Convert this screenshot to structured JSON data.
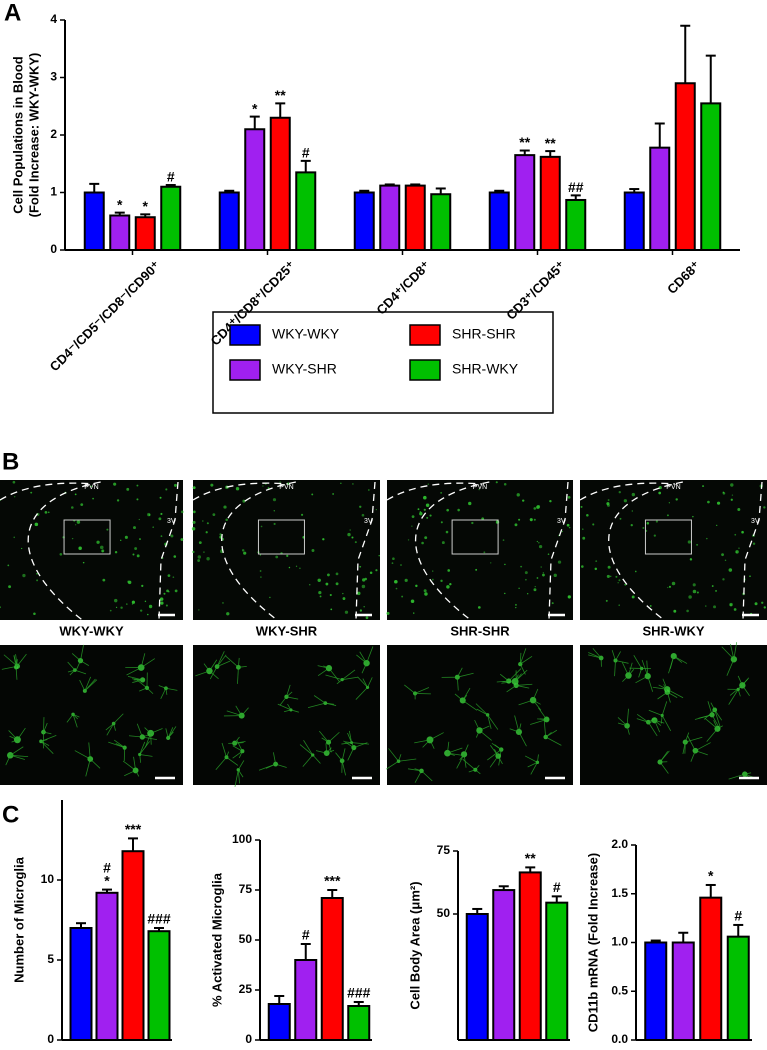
{
  "panel_labels": {
    "a": "A",
    "b": "B",
    "c": "C"
  },
  "chart_data": [
    {
      "type": "grouped-bar",
      "ylabel": [
        "Cell Populations in Blood",
        "(Fold Increase: WKY-WKY)"
      ],
      "categories": [
        "CD4⁻/CD5⁻/CD8⁻/CD90⁺",
        "CD4⁺/CD8⁺/CD25⁺",
        "CD4⁺/CD8⁺",
        "CD3⁺/CD45⁺",
        "CD68⁺"
      ],
      "ylim": [
        0,
        4
      ],
      "yticks": [
        0,
        1,
        2,
        3,
        4
      ],
      "series": [
        {
          "name": "WKY-WKY",
          "color": "#0000ff",
          "values": [
            1.0,
            1.0,
            1.0,
            1.0,
            1.0
          ],
          "errors": [
            0.15,
            0.03,
            0.03,
            0.03,
            0.06
          ],
          "annotations": [
            null,
            null,
            null,
            null,
            null
          ]
        },
        {
          "name": "WKY-SHR",
          "color": "#a020f0",
          "values": [
            0.6,
            2.1,
            1.12,
            1.65,
            1.78
          ],
          "errors": [
            0.05,
            0.22,
            0.02,
            0.08,
            0.42
          ],
          "annotations": [
            "*",
            "*",
            null,
            "**",
            null
          ]
        },
        {
          "name": "SHR-SHR",
          "color": "#ff0000",
          "values": [
            0.57,
            2.3,
            1.12,
            1.62,
            2.9
          ],
          "errors": [
            0.05,
            0.25,
            0.02,
            0.1,
            1.0
          ],
          "annotations": [
            "*",
            "**",
            null,
            "**",
            null
          ]
        },
        {
          "name": "SHR-WKY",
          "color": "#00c000",
          "values": [
            1.1,
            1.35,
            0.97,
            0.87,
            2.55
          ],
          "errors": [
            0.03,
            0.2,
            0.1,
            0.08,
            0.83
          ],
          "annotations": [
            "#",
            "#",
            null,
            "##",
            null
          ]
        }
      ]
    },
    {
      "type": "bar",
      "ylabel": "Number of Microglia",
      "ylim": [
        0,
        15
      ],
      "yticks": [
        0,
        5,
        10
      ],
      "colors": [
        "#0000ff",
        "#a020f0",
        "#ff0000",
        "#00c000"
      ],
      "values": [
        7.0,
        9.2,
        11.8,
        6.8
      ],
      "errors": [
        0.3,
        0.2,
        0.8,
        0.2
      ],
      "annotations": [
        [],
        [
          "#",
          "*"
        ],
        [
          "***"
        ],
        [
          "###"
        ]
      ]
    },
    {
      "type": "bar",
      "ylabel": "% Activated Microglia",
      "ylim": [
        0,
        100
      ],
      "yticks": [
        0,
        25,
        50,
        75,
        100
      ],
      "colors": [
        "#0000ff",
        "#a020f0",
        "#ff0000",
        "#00c000"
      ],
      "values": [
        18,
        40,
        71,
        17
      ],
      "errors": [
        4,
        8,
        4,
        2
      ],
      "annotations": [
        [],
        [
          "#"
        ],
        [
          "***"
        ],
        [
          "###"
        ]
      ]
    },
    {
      "type": "bar",
      "ylabel": "Cell Body Area (μm²)",
      "ylim": [
        0,
        75
      ],
      "yticks": [
        50,
        75
      ],
      "colors": [
        "#0000ff",
        "#a020f0",
        "#ff0000",
        "#00c000"
      ],
      "values": [
        50,
        59.5,
        66.5,
        54.5
      ],
      "errors": [
        2,
        1.5,
        2,
        2.5
      ],
      "annotations": [
        [],
        [],
        [
          "**"
        ],
        [
          "#"
        ]
      ]
    },
    {
      "type": "bar",
      "ylabel": "CD11b mRNA (Fold Increase)",
      "ylim": [
        0,
        2
      ],
      "yticks": [
        {
          "value": 0,
          "label": "0.0"
        },
        0.5,
        {
          "value": 1,
          "label": "1.0"
        },
        1.5,
        {
          "value": 2,
          "label": "2.0"
        }
      ],
      "colors": [
        "#0000ff",
        "#a020f0",
        "#ff0000",
        "#00c000"
      ],
      "values": [
        1.0,
        1.0,
        1.46,
        1.06
      ],
      "errors": [
        0.02,
        0.1,
        0.13,
        0.12
      ],
      "annotations": [
        [],
        [],
        [
          "*"
        ],
        [
          "#"
        ]
      ]
    }
  ],
  "micrographs": {
    "region_label": "PVN",
    "ventricle_label": "3V",
    "groups": [
      "WKY-WKY",
      "WKY-SHR",
      "SHR-SHR",
      "SHR-WKY"
    ]
  }
}
